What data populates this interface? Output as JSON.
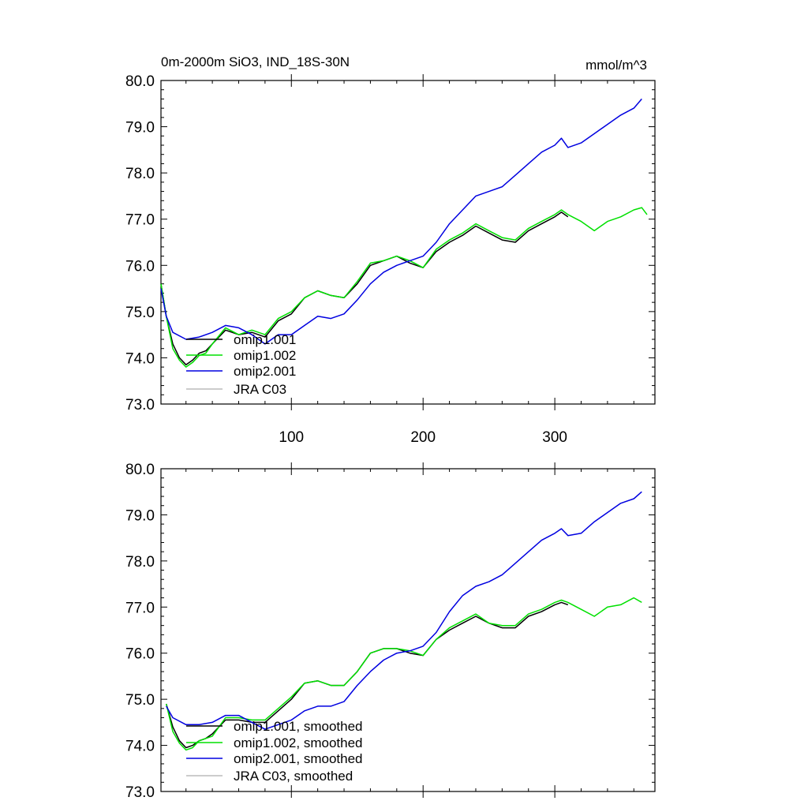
{
  "figure": {
    "title_left": "0m-2000m SiO3, IND_18S-30N",
    "title_right": "mmol/m^3"
  },
  "chart_data": [
    {
      "type": "line",
      "title": "0m-2000m SiO3, IND_18S-30N",
      "units": "mmol/m^3",
      "xlim": [
        1,
        376
      ],
      "ylim": [
        73.0,
        80.0
      ],
      "x_ticks": [
        100,
        200,
        300
      ],
      "y_ticks": [
        "73.0",
        "74.0",
        "75.0",
        "76.0",
        "77.0",
        "78.0",
        "79.0",
        "80.0"
      ],
      "legend_position": "lower-left",
      "series": [
        {
          "name": "omip1.001",
          "color": "#000000",
          "x": [
            1,
            5,
            10,
            15,
            20,
            25,
            30,
            35,
            40,
            50,
            60,
            70,
            80,
            90,
            100,
            110,
            120,
            130,
            140,
            150,
            160,
            170,
            180,
            190,
            200,
            210,
            220,
            230,
            240,
            250,
            260,
            270,
            280,
            290,
            300,
            305,
            310
          ],
          "y": [
            75.6,
            74.9,
            74.3,
            74.0,
            73.85,
            73.95,
            74.1,
            74.15,
            74.3,
            74.6,
            74.5,
            74.55,
            74.45,
            74.8,
            74.95,
            75.3,
            75.45,
            75.35,
            75.3,
            75.6,
            76.0,
            76.1,
            76.2,
            76.05,
            75.95,
            76.3,
            76.5,
            76.65,
            76.85,
            76.7,
            76.55,
            76.5,
            76.75,
            76.9,
            77.05,
            77.15,
            77.05
          ]
        },
        {
          "name": "omip1.002",
          "color": "#00e000",
          "x": [
            1,
            5,
            10,
            15,
            20,
            25,
            30,
            35,
            40,
            50,
            60,
            70,
            80,
            90,
            100,
            110,
            120,
            130,
            140,
            150,
            160,
            170,
            180,
            190,
            200,
            210,
            220,
            230,
            240,
            250,
            260,
            270,
            280,
            290,
            300,
            305,
            310,
            320,
            330,
            340,
            350,
            360,
            366,
            370
          ],
          "y": [
            75.6,
            74.9,
            74.2,
            73.95,
            73.8,
            73.9,
            74.05,
            74.1,
            74.3,
            74.65,
            74.5,
            74.6,
            74.5,
            74.85,
            75.0,
            75.3,
            75.45,
            75.35,
            75.3,
            75.65,
            76.05,
            76.1,
            76.2,
            76.1,
            75.95,
            76.35,
            76.55,
            76.7,
            76.9,
            76.75,
            76.6,
            76.55,
            76.8,
            76.95,
            77.1,
            77.2,
            77.1,
            76.95,
            76.75,
            76.95,
            77.05,
            77.2,
            77.25,
            77.1
          ]
        },
        {
          "name": "omip2.001",
          "color": "#0000e0",
          "x": [
            1,
            5,
            10,
            20,
            30,
            40,
            50,
            60,
            70,
            80,
            90,
            100,
            110,
            120,
            130,
            140,
            150,
            160,
            170,
            180,
            190,
            200,
            210,
            220,
            230,
            240,
            250,
            260,
            270,
            280,
            290,
            300,
            305,
            310,
            320,
            330,
            340,
            350,
            360,
            366
          ],
          "y": [
            75.5,
            74.9,
            74.55,
            74.4,
            74.45,
            74.55,
            74.7,
            74.65,
            74.5,
            74.3,
            74.5,
            74.5,
            74.7,
            74.9,
            74.85,
            74.95,
            75.25,
            75.6,
            75.85,
            76.0,
            76.1,
            76.2,
            76.5,
            76.9,
            77.2,
            77.5,
            77.6,
            77.7,
            77.95,
            78.2,
            78.45,
            78.6,
            78.75,
            78.55,
            78.65,
            78.85,
            79.05,
            79.25,
            79.4,
            79.6
          ]
        }
      ]
    },
    {
      "type": "line",
      "xlim": [
        1,
        376
      ],
      "ylim": [
        73.0,
        80.0
      ],
      "x_ticks": [
        100,
        200,
        300
      ],
      "y_ticks": [
        "73.0",
        "74.0",
        "75.0",
        "76.0",
        "77.0",
        "78.0",
        "79.0",
        "80.0"
      ],
      "legend_position": "lower-left",
      "series": [
        {
          "name": "omip1.001, smoothed",
          "color": "#000000",
          "x": [
            5,
            10,
            15,
            20,
            25,
            30,
            35,
            40,
            50,
            60,
            70,
            80,
            90,
            100,
            110,
            120,
            130,
            140,
            150,
            160,
            170,
            180,
            190,
            200,
            210,
            220,
            230,
            240,
            250,
            260,
            270,
            280,
            290,
            300,
            305,
            310
          ],
          "y": [
            74.9,
            74.4,
            74.1,
            73.95,
            74.0,
            74.1,
            74.15,
            74.25,
            74.55,
            74.55,
            74.5,
            74.5,
            74.75,
            75.0,
            75.35,
            75.4,
            75.3,
            75.3,
            75.6,
            76.0,
            76.1,
            76.1,
            76.0,
            75.95,
            76.3,
            76.5,
            76.65,
            76.8,
            76.65,
            76.55,
            76.55,
            76.8,
            76.9,
            77.05,
            77.1,
            77.05
          ]
        },
        {
          "name": "omip1.002, smoothed",
          "color": "#00e000",
          "x": [
            5,
            10,
            15,
            20,
            25,
            30,
            35,
            40,
            50,
            60,
            70,
            80,
            90,
            100,
            110,
            120,
            130,
            140,
            150,
            160,
            170,
            180,
            190,
            200,
            210,
            220,
            230,
            240,
            250,
            260,
            270,
            280,
            290,
            300,
            305,
            310,
            320,
            330,
            340,
            350,
            360,
            366
          ],
          "y": [
            74.9,
            74.3,
            74.05,
            73.9,
            73.95,
            74.1,
            74.15,
            74.2,
            74.6,
            74.6,
            74.55,
            74.55,
            74.8,
            75.05,
            75.35,
            75.4,
            75.3,
            75.3,
            75.6,
            76.0,
            76.1,
            76.1,
            76.05,
            75.95,
            76.3,
            76.55,
            76.7,
            76.85,
            76.65,
            76.6,
            76.6,
            76.85,
            76.95,
            77.1,
            77.15,
            77.1,
            76.95,
            76.8,
            77.0,
            77.05,
            77.2,
            77.1
          ]
        },
        {
          "name": "omip2.001, smoothed",
          "color": "#0000e0",
          "x": [
            5,
            10,
            20,
            30,
            40,
            50,
            60,
            70,
            80,
            90,
            100,
            110,
            120,
            130,
            140,
            150,
            160,
            170,
            180,
            190,
            200,
            210,
            220,
            230,
            240,
            250,
            260,
            270,
            280,
            290,
            300,
            305,
            310,
            320,
            330,
            340,
            350,
            360,
            366
          ],
          "y": [
            74.85,
            74.6,
            74.45,
            74.45,
            74.5,
            74.65,
            74.65,
            74.5,
            74.35,
            74.45,
            74.55,
            74.75,
            74.85,
            74.85,
            74.95,
            75.3,
            75.6,
            75.85,
            76.0,
            76.05,
            76.15,
            76.45,
            76.9,
            77.25,
            77.45,
            77.55,
            77.7,
            77.95,
            78.2,
            78.45,
            78.6,
            78.7,
            78.55,
            78.6,
            78.85,
            79.05,
            79.25,
            79.35,
            79.5
          ]
        }
      ]
    }
  ],
  "legends": [
    {
      "items": [
        {
          "label": "omip1.001",
          "color": "#000000"
        },
        {
          "label": "omip1.002",
          "color": "#00e000"
        },
        {
          "label": "omip2.001",
          "color": "#0000e0"
        },
        {
          "label": "JRA C03",
          "color": "#bbbbbb"
        }
      ]
    },
    {
      "items": [
        {
          "label": "omip1.001, smoothed",
          "color": "#000000"
        },
        {
          "label": "omip1.002, smoothed",
          "color": "#00e000"
        },
        {
          "label": "omip2.001, smoothed",
          "color": "#0000e0"
        },
        {
          "label": "JRA C03, smoothed",
          "color": "#bbbbbb"
        }
      ]
    }
  ]
}
